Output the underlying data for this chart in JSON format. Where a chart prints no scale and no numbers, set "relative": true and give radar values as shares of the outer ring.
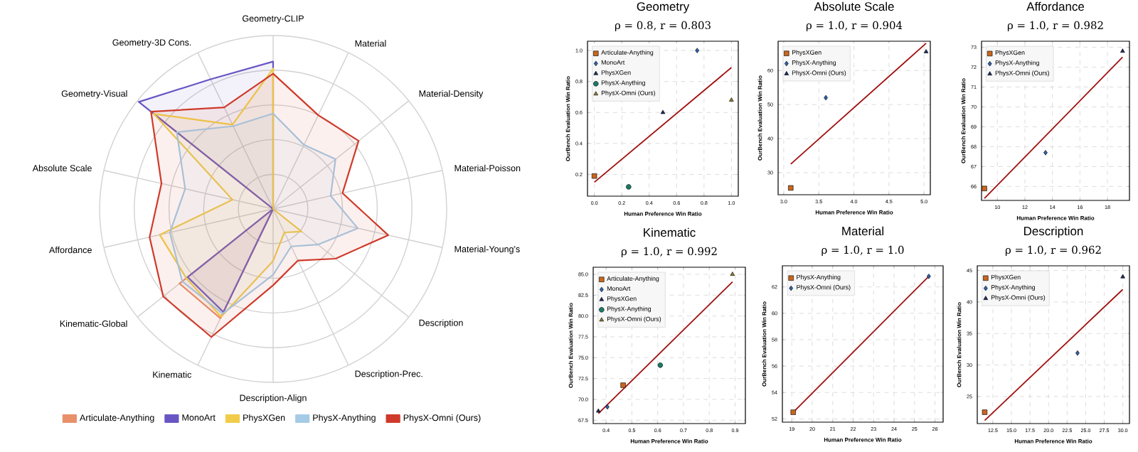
{
  "chart_data": [
    {
      "type": "radar",
      "relative": true,
      "legend": "bottom",
      "categories": [
        "Geometry-CLIP",
        "Material",
        "Material-Density",
        "Material-Poisson",
        "Material-Young's",
        "Description",
        "Description-Prec.",
        "Description-Align",
        "Kinematic",
        "Kinematic-Global",
        "Affordance",
        "Absolute Scale",
        "Geometry-Visual",
        "Geometry-3D Cons."
      ],
      "series": [
        {
          "name": "Articulate-Anything",
          "color": "#e8906a",
          "values": [
            0,
            0,
            0,
            0,
            0,
            0,
            0,
            0,
            0.7,
            0.69,
            0,
            0,
            0.88,
            0
          ]
        },
        {
          "name": "MonoArt",
          "color": "#6a55c4",
          "values": [
            0.85,
            0,
            0,
            0,
            0,
            0,
            0,
            0,
            0.66,
            0.63,
            0,
            0,
            0.99,
            0.83
          ]
        },
        {
          "name": "PhysXGen",
          "color": "#f0cc4a",
          "values": [
            0.81,
            0,
            0,
            0,
            0,
            0.21,
            0.15,
            0.3,
            0.69,
            0.64,
            0.67,
            0.24,
            0.88,
            0.54
          ]
        },
        {
          "name": "PhysX-Anything",
          "color": "#a6cbe6",
          "values": [
            0.55,
            0.41,
            0.46,
            0.34,
            0.5,
            0.33,
            0.24,
            0.38,
            0.67,
            0.67,
            0.61,
            0.52,
            0.71,
            0.53
          ]
        },
        {
          "name": "PhysX-Omni (Ours)",
          "color": "#cf3a2a",
          "values": [
            0.78,
            0.6,
            0.63,
            0.41,
            0.68,
            0.46,
            0.33,
            0.44,
            0.82,
            0.81,
            0.73,
            0.66,
            0.9,
            0.65
          ]
        }
      ]
    },
    {
      "type": "scatter",
      "title": "Geometry",
      "subtitle": "ρ = 0.8, r = 0.803",
      "xlabel": "Human Preference Win Ratio",
      "ylabel": "OurBench Evaluation Win Ratio",
      "grid": true,
      "legend": "top left",
      "xlim": [
        -0.05,
        1.05
      ],
      "ylim": [
        0.06,
        1.06
      ],
      "xticks": [
        {
          "value": 0,
          "label": "0.0"
        },
        0.2,
        0.4,
        0.6,
        0.8,
        {
          "value": 1,
          "label": "1.0"
        }
      ],
      "yticks": [
        0.2,
        0.4,
        0.6,
        0.8,
        {
          "value": 1,
          "label": "1.0"
        }
      ],
      "series": [
        {
          "name": "Articulate-Anything",
          "color": "#c8661e",
          "marker": "square",
          "x": [
            0.0
          ],
          "values": [
            0.19
          ]
        },
        {
          "name": "MonoArt",
          "color": "#2f5fa8",
          "marker": "diamond",
          "x": [
            0.75
          ],
          "values": [
            1.0
          ]
        },
        {
          "name": "PhysXGen",
          "color": "#1f2b5e",
          "marker": "triangle",
          "x": [
            0.5
          ],
          "values": [
            0.6
          ]
        },
        {
          "name": "PhysX-Anything",
          "color": "#1b7a68",
          "marker": "circle",
          "x": [
            0.25
          ],
          "values": [
            0.12
          ]
        },
        {
          "name": "PhysX-Omni (Ours)",
          "color": "#8c7d2c",
          "marker": "triangle",
          "x": [
            1.0
          ],
          "values": [
            0.68
          ]
        },
        {
          "type": "line",
          "color": "#a01010",
          "x": [
            0.0,
            1.0
          ],
          "values": [
            0.15,
            0.89
          ]
        }
      ]
    },
    {
      "type": "scatter",
      "title": "Absolute Scale",
      "subtitle": "ρ = 1.0, r = 0.904",
      "xlabel": "Human Preference Win Ratio",
      "ylabel": "OurBench Evaluation Win Ratio",
      "grid": true,
      "legend": "top left",
      "xlim": [
        2.92,
        5.09
      ],
      "ylim": [
        23.5,
        68.6
      ],
      "xticks": [
        {
          "value": 3,
          "label": "3.0"
        },
        3.5,
        {
          "value": 4,
          "label": "4.0"
        },
        4.5,
        {
          "value": 5,
          "label": "5.0"
        }
      ],
      "yticks": [
        30,
        40,
        50,
        60
      ],
      "series": [
        {
          "name": "PhysXGen",
          "color": "#c8661e",
          "marker": "square",
          "x": [
            3.1
          ],
          "values": [
            25.5
          ]
        },
        {
          "name": "PhysX-Anything",
          "color": "#2f5fa8",
          "marker": "diamond",
          "x": [
            3.6
          ],
          "values": [
            52
          ]
        },
        {
          "name": "PhysX-Omni (Ours)",
          "color": "#1f2b5e",
          "marker": "triangle",
          "x": [
            5.03
          ],
          "values": [
            65.5
          ]
        },
        {
          "type": "line",
          "color": "#a01010",
          "x": [
            3.1,
            5.03
          ],
          "values": [
            32.5,
            68
          ]
        }
      ]
    },
    {
      "type": "scatter",
      "title": "Affordance",
      "subtitle": "ρ = 1.0, r = 0.982",
      "xlabel": "Human Preference Win Ratio",
      "ylabel": "OurBench Evaluation Win Ratio",
      "grid": true,
      "legend": "top left",
      "xlim": [
        8.85,
        19.6
      ],
      "ylim": [
        65.3,
        73.3
      ],
      "xticks": [
        10,
        12,
        14,
        16,
        18
      ],
      "yticks": [
        66,
        67,
        68,
        69,
        70,
        71,
        72,
        73
      ],
      "series": [
        {
          "name": "PhysXGen",
          "color": "#c8661e",
          "marker": "square",
          "x": [
            9.06
          ],
          "values": [
            65.9
          ]
        },
        {
          "name": "PhysX-Anything",
          "color": "#2f5fa8",
          "marker": "diamond",
          "x": [
            13.5
          ],
          "values": [
            67.7
          ]
        },
        {
          "name": "PhysX-Omni (Ours)",
          "color": "#1f2b5e",
          "marker": "triangle",
          "x": [
            19.1
          ],
          "values": [
            72.8
          ]
        },
        {
          "type": "line",
          "color": "#a01010",
          "x": [
            9.06,
            19.1
          ],
          "values": [
            65.4,
            72.5
          ]
        }
      ]
    },
    {
      "type": "scatter",
      "title": "Kinematic",
      "subtitle": "ρ = 1.0, r = 0.992",
      "xlabel": "Human Preference Win Ratio",
      "ylabel": "OurBench Evaluation Win Ratio",
      "grid": true,
      "legend": "top left",
      "xlim": [
        0.35,
        0.94
      ],
      "ylim": [
        67.1,
        85.85
      ],
      "xticks": [
        0.4,
        0.5,
        0.6,
        0.7,
        0.8,
        0.9
      ],
      "yticks": [
        67.5,
        {
          "value": 70,
          "label": "70.0"
        },
        72.5,
        {
          "value": 75,
          "label": "75.0"
        },
        77.5,
        {
          "value": 80,
          "label": "80.0"
        },
        82.5,
        {
          "value": 85,
          "label": "85.0"
        }
      ],
      "series": [
        {
          "name": "Articulate-Anything",
          "color": "#c8661e",
          "marker": "square",
          "x": [
            0.466
          ],
          "values": [
            71.7
          ]
        },
        {
          "name": "MonoArt",
          "color": "#2f5fa8",
          "marker": "diamond",
          "x": [
            0.405
          ],
          "values": [
            69.1
          ]
        },
        {
          "name": "PhysXGen",
          "color": "#1f2b5e",
          "marker": "triangle",
          "x": [
            0.37
          ],
          "values": [
            68.6
          ]
        },
        {
          "name": "PhysX-Anything",
          "color": "#1b7a68",
          "marker": "circle",
          "x": [
            0.61
          ],
          "values": [
            74.1
          ]
        },
        {
          "name": "PhysX-Omni (Ours)",
          "color": "#8c7d2c",
          "marker": "triangle",
          "x": [
            0.89
          ],
          "values": [
            85.0
          ]
        },
        {
          "type": "line",
          "color": "#a01010",
          "x": [
            0.37,
            0.89
          ],
          "values": [
            68.3,
            84.1
          ]
        }
      ]
    },
    {
      "type": "scatter",
      "title": "Material",
      "subtitle": "ρ = 1.0, r = 1.0",
      "xlabel": "Human Preference Win Ratio",
      "ylabel": "OurBench Evaluation Win Ratio",
      "grid": true,
      "legend": "top left",
      "xlim": [
        18.54,
        26.4
      ],
      "ylim": [
        51.75,
        63.6
      ],
      "xticks": [
        19,
        20,
        21,
        22,
        23,
        24,
        25,
        26
      ],
      "yticks": [
        52,
        54,
        56,
        58,
        60,
        62
      ],
      "series": [
        {
          "name": "PhysX-Anything",
          "color": "#c8661e",
          "marker": "square",
          "x": [
            19.07
          ],
          "values": [
            52.5
          ]
        },
        {
          "name": "PhysX-Omni (Ours)",
          "color": "#2f5fa8",
          "marker": "diamond",
          "x": [
            25.7
          ],
          "values": [
            62.8
          ]
        },
        {
          "type": "line",
          "color": "#a01010",
          "x": [
            19.07,
            25.7
          ],
          "values": [
            52.5,
            62.8
          ]
        }
      ]
    },
    {
      "type": "scatter",
      "title": "Description",
      "subtitle": "ρ = 1.0, r = 0.962",
      "xlabel": "Human Preference Win Ratio",
      "ylabel": "OurBench Evaluation Win Ratio",
      "grid": true,
      "legend": "top left",
      "xlim": [
        10.4,
        30.9
      ],
      "ylim": [
        20.7,
        45.75
      ],
      "xticks": [
        12.5,
        {
          "value": 15,
          "label": "15.0"
        },
        17.5,
        {
          "value": 20,
          "label": "20.0"
        },
        22.5,
        {
          "value": 25,
          "label": "25.0"
        },
        27.5,
        {
          "value": 30,
          "label": "30.0"
        }
      ],
      "yticks": [
        25,
        30,
        35,
        40,
        45
      ],
      "series": [
        {
          "name": "PhysXGen",
          "color": "#c8661e",
          "marker": "square",
          "x": [
            11.4
          ],
          "values": [
            22.5
          ]
        },
        {
          "name": "PhysX-Anything",
          "color": "#2f5fa8",
          "marker": "diamond",
          "x": [
            23.9
          ],
          "values": [
            31.9
          ]
        },
        {
          "name": "PhysX-Omni (Ours)",
          "color": "#1f2b5e",
          "marker": "triangle",
          "x": [
            30.0
          ],
          "values": [
            44.0
          ]
        },
        {
          "type": "line",
          "color": "#a01010",
          "x": [
            11.4,
            30.0
          ],
          "values": [
            21.2,
            42.0
          ]
        }
      ]
    }
  ]
}
